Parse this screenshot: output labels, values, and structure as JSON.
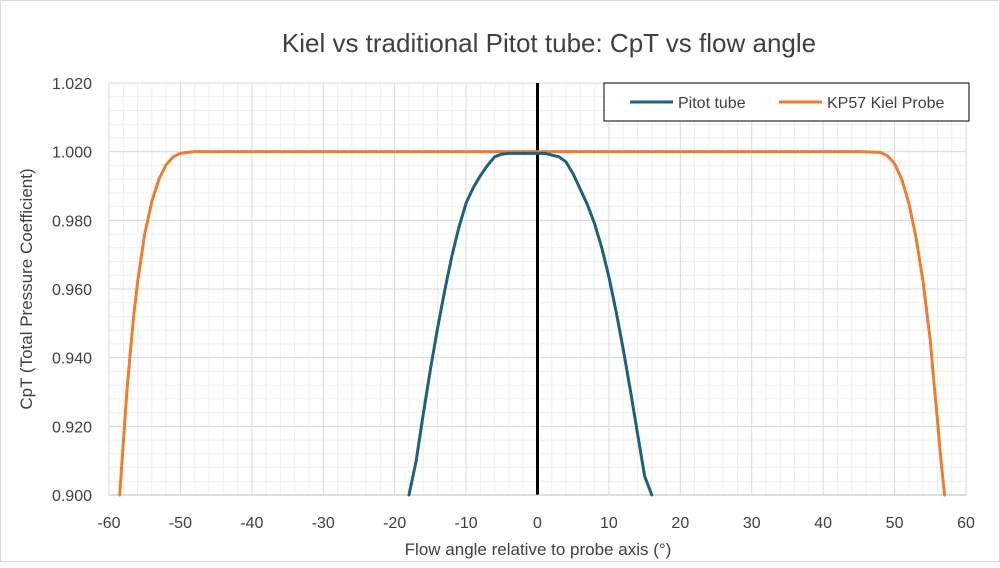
{
  "chart_data": {
    "type": "line",
    "title": "Kiel vs traditional Pitot tube: CpT vs flow angle",
    "xlabel": "Flow angle relative to probe axis (°)",
    "ylabel": "CpT (Total Pressure Coefficient)",
    "xlim": [
      -60,
      60
    ],
    "ylim": [
      0.9,
      1.02
    ],
    "x_ticks": [
      -60,
      -50,
      -40,
      -30,
      -20,
      -10,
      0,
      10,
      20,
      30,
      40,
      50,
      60
    ],
    "y_ticks": [
      0.9,
      0.92,
      0.94,
      0.96,
      0.98,
      1.0,
      1.02
    ],
    "x_tick_labels": [
      "-60",
      "-50",
      "-40",
      "-30",
      "-20",
      "-10",
      "0",
      "10",
      "20",
      "30",
      "40",
      "50",
      "60"
    ],
    "y_tick_labels": [
      "0.900",
      "0.920",
      "0.940",
      "0.960",
      "0.980",
      "1.000",
      "1.020"
    ],
    "grid": true,
    "legend_position": "top-right",
    "series": [
      {
        "name": "Pitot tube",
        "color": "#1f5f7f",
        "x": [
          -18,
          -17,
          -16,
          -15,
          -14,
          -13,
          -12,
          -11,
          -10,
          -9,
          -8,
          -7,
          -6,
          -5,
          -4,
          -3,
          -2,
          -1,
          0,
          1,
          2,
          3,
          4,
          5,
          6,
          7,
          8,
          9,
          10,
          11,
          12,
          13,
          14,
          15,
          16
        ],
        "y": [
          0.9,
          0.9098,
          0.9235,
          0.9365,
          0.9485,
          0.9595,
          0.9695,
          0.978,
          0.985,
          0.9895,
          0.993,
          0.996,
          0.9985,
          0.9993,
          0.9995,
          0.9995,
          0.9995,
          0.9995,
          0.9995,
          0.9995,
          0.999,
          0.9985,
          0.997,
          0.9935,
          0.989,
          0.9845,
          0.979,
          0.972,
          0.9635,
          0.9535,
          0.9425,
          0.9305,
          0.918,
          0.9055,
          0.9
        ]
      },
      {
        "name": "KP57 Kiel Probe",
        "color": "#ed7d31",
        "x": [
          -58.5,
          -58,
          -57.5,
          -57,
          -56.5,
          -56,
          -55,
          -54,
          -53,
          -52,
          -51,
          -50,
          -49,
          -48,
          -47,
          -40,
          -30,
          -20,
          -10,
          0,
          10,
          20,
          30,
          40,
          45,
          48,
          49,
          50,
          51,
          52,
          53,
          54,
          55,
          55.5,
          56,
          56.5,
          57
        ],
        "y": [
          0.9,
          0.915,
          0.93,
          0.942,
          0.953,
          0.962,
          0.976,
          0.9855,
          0.992,
          0.9962,
          0.9985,
          0.9995,
          0.9998,
          1.0,
          1.0,
          1.0,
          1.0,
          1.0,
          1.0,
          1.0,
          1.0,
          1.0,
          1.0,
          1.0,
          1.0,
          0.9998,
          0.9988,
          0.9965,
          0.992,
          0.985,
          0.975,
          0.962,
          0.945,
          0.933,
          0.922,
          0.91,
          0.9
        ]
      }
    ]
  }
}
